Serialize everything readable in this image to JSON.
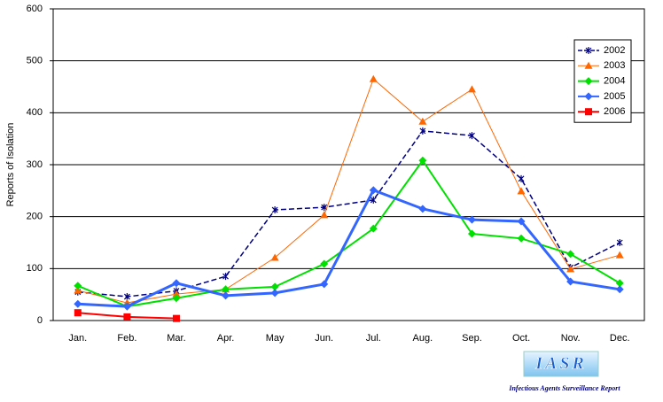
{
  "chart_data": {
    "type": "line",
    "y_label": "Reports of Isolation",
    "categories": [
      "Jan.",
      "Feb.",
      "Mar.",
      "Apr.",
      "May",
      "Jun.",
      "Jul.",
      "Aug.",
      "Sep.",
      "Oct.",
      "Nov.",
      "Dec."
    ],
    "series": [
      {
        "name": "2002",
        "color": "#000080",
        "marker": "star",
        "dashed": true,
        "values": [
          55,
          46,
          57,
          85,
          213,
          218,
          232,
          365,
          356,
          273,
          102,
          150
        ]
      },
      {
        "name": "2003",
        "color": "#ff6600",
        "marker": "triangle",
        "dashed": false,
        "values": [
          58,
          34,
          51,
          60,
          121,
          203,
          465,
          383,
          445,
          249,
          99,
          126
        ]
      },
      {
        "name": "2004",
        "color": "#00e000",
        "marker": "diamond",
        "dashed": false,
        "values": [
          67,
          27,
          43,
          60,
          65,
          109,
          177,
          308,
          167,
          158,
          128,
          72
        ]
      },
      {
        "name": "2005",
        "color": "#3366ff",
        "marker": "diamond",
        "dashed": false,
        "values": [
          32,
          27,
          72,
          48,
          53,
          70,
          251,
          215,
          194,
          191,
          75,
          60
        ]
      },
      {
        "name": "2006",
        "color": "#ff0000",
        "marker": "square",
        "dashed": false,
        "values": [
          15,
          7,
          4,
          null,
          null,
          null,
          null,
          null,
          null,
          null,
          null,
          null
        ]
      }
    ],
    "ylim": [
      0,
      600
    ],
    "yticks": [
      0,
      100,
      200,
      300,
      400,
      500,
      600
    ],
    "grid": true,
    "legend": "top-right",
    "logo": "IASR",
    "logo_caption": "Infectious Agents Surveillance Report"
  }
}
